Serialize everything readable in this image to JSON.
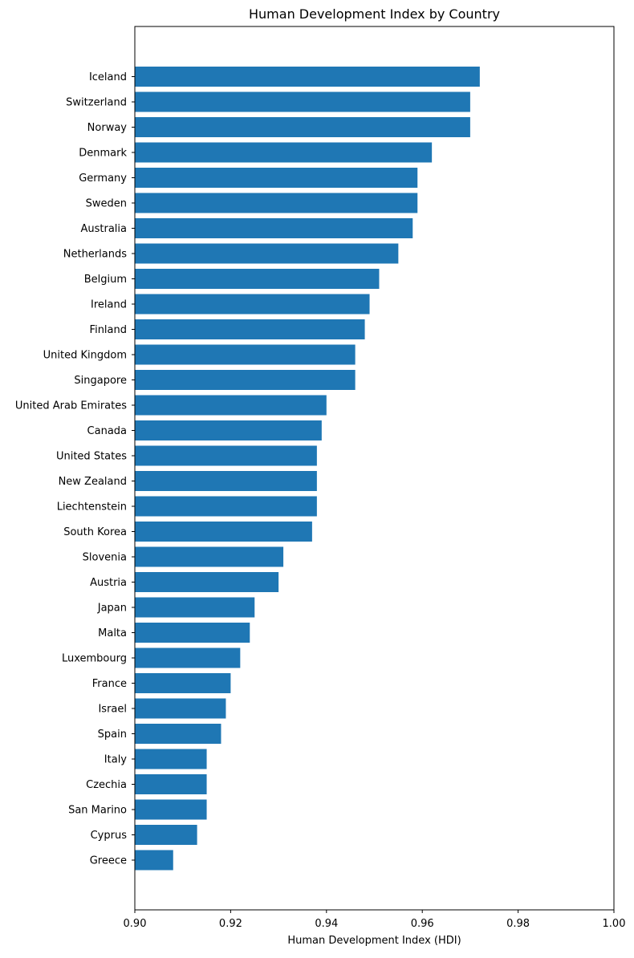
{
  "chart_data": {
    "type": "bar",
    "orientation": "horizontal",
    "title": "Human Development Index by Country",
    "xlabel": "Human Development Index (HDI)",
    "ylabel": "",
    "xlim": [
      0.9,
      1.0
    ],
    "xticks": [
      0.9,
      0.92,
      0.94,
      0.96,
      0.98,
      1.0
    ],
    "xtick_labels": [
      "0.90",
      "0.92",
      "0.94",
      "0.96",
      "0.98",
      "1.00"
    ],
    "grid": false,
    "bar_color": "#1f77b4",
    "categories": [
      "Iceland",
      "Switzerland",
      "Norway",
      "Denmark",
      "Germany",
      "Sweden",
      "Australia",
      "Netherlands",
      "Belgium",
      "Ireland",
      "Finland",
      "United Kingdom",
      "Singapore",
      "United Arab Emirates",
      "Canada",
      "United States",
      "New Zealand",
      "Liechtenstein",
      "South Korea",
      "Slovenia",
      "Austria",
      "Japan",
      "Malta",
      "Luxembourg",
      "France",
      "Israel",
      "Spain",
      "Italy",
      "Czechia",
      "San Marino",
      "Cyprus",
      "Greece"
    ],
    "values": [
      0.972,
      0.97,
      0.97,
      0.962,
      0.959,
      0.959,
      0.958,
      0.955,
      0.951,
      0.949,
      0.948,
      0.946,
      0.946,
      0.94,
      0.939,
      0.938,
      0.938,
      0.938,
      0.937,
      0.931,
      0.93,
      0.925,
      0.924,
      0.922,
      0.92,
      0.919,
      0.918,
      0.915,
      0.915,
      0.915,
      0.913,
      0.908
    ]
  }
}
